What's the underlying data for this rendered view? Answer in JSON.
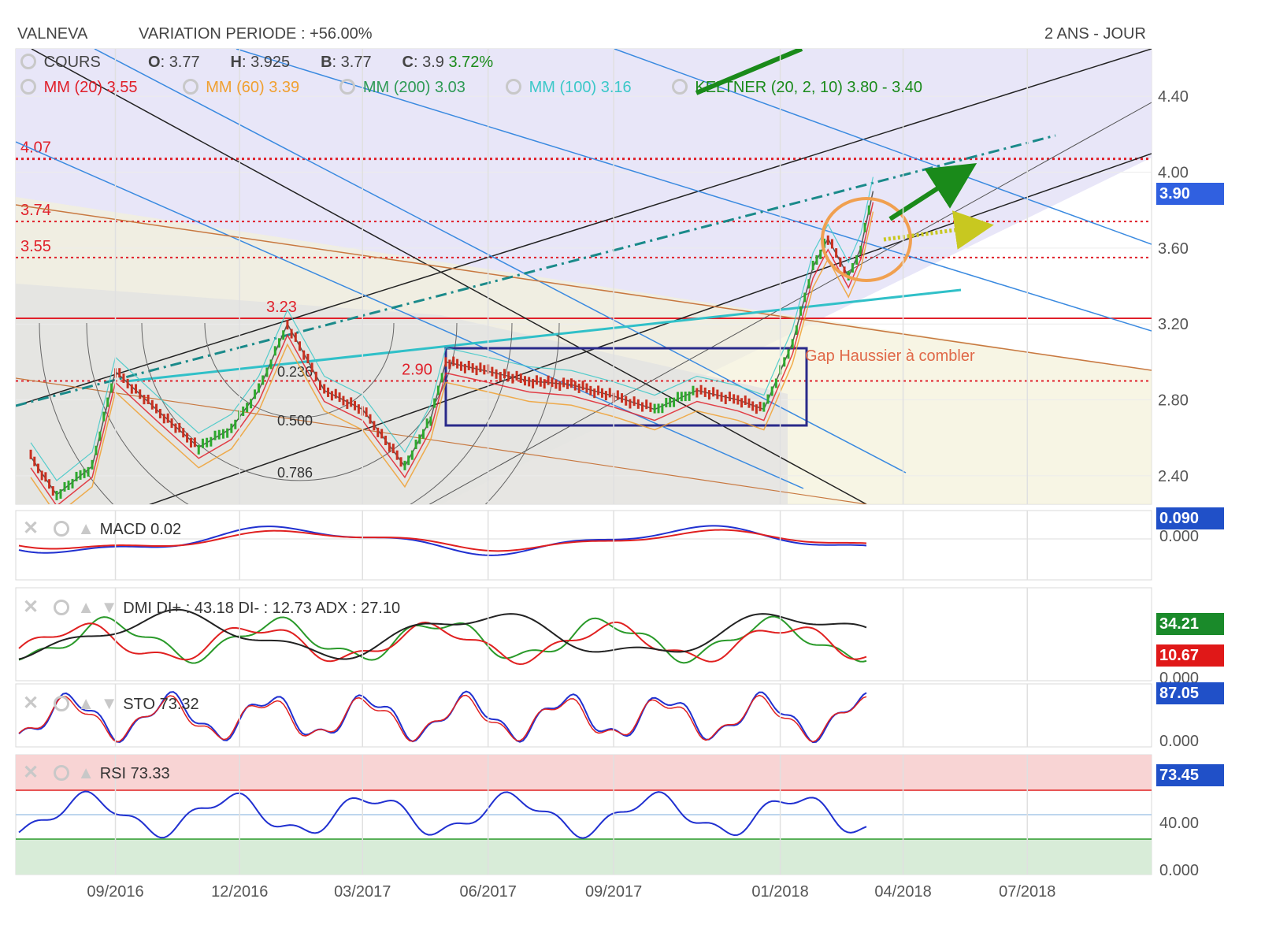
{
  "header": {
    "ticker": "VALNEVA",
    "variation": "VARIATION PERIODE : +56.00%",
    "period": "2 ANS - JOUR"
  },
  "legend_main": {
    "cours_label": "COURS",
    "open_label": "O",
    "open": "3.77",
    "high_label": "H",
    "high": "3.925",
    "low_label": "B",
    "low": "3.77",
    "close_label": "C",
    "close": "3.9",
    "change": "3.72%",
    "mm20_label": "MM (20)",
    "mm20": "3.55",
    "mm60_label": "MM (60)",
    "mm60": "3.39",
    "mm200_label": "MM (200)",
    "mm200": "3.03",
    "mm100_label": "MM (100)",
    "mm100": "3.16",
    "keltner_label": "KELTNER (20, 2, 10)",
    "keltner": "3.80 - 3.40"
  },
  "annotations": {
    "level_407": "4.07",
    "level_374": "3.74",
    "level_355": "3.55",
    "level_323": "3.23",
    "level_290": "2.90",
    "fib_0236": "0.236",
    "fib_0500": "0.500",
    "fib_0786": "0.786",
    "gap_text": "Gap Haussier à combler"
  },
  "panels": {
    "macd": {
      "label": "MACD",
      "value": "0.02",
      "badge_top": "0.090",
      "badge_zero": "0.000"
    },
    "dmi": {
      "label": "DMI",
      "text": "DI+ : 43.18 DI- : 12.73 ADX : 27.10",
      "badge_plus": "34.21",
      "badge_minus": "10.67",
      "badge_zero": "0.000"
    },
    "sto": {
      "label": "STO",
      "value": "73.32",
      "badge": "87.05",
      "zero": "0.000"
    },
    "rsi": {
      "label": "RSI",
      "value": "73.33",
      "badge": "73.45",
      "mid": "40.00",
      "zero": "0.000"
    }
  },
  "last_price_badge": "3.90",
  "colors": {
    "mm20": "#e0202a",
    "mm60": "#f0a030",
    "mm200": "#2e9a55",
    "mm100": "#3cc8c8",
    "keltner": "#1a8a1a",
    "badge_blue": "#3060e0",
    "badge_green": "#1a8a2a",
    "badge_red": "#e01818"
  },
  "chart_data": {
    "type": "candlestick",
    "title": "VALNEVA",
    "period": "2 ANS - JOUR",
    "x_ticks": [
      "09/2016",
      "12/2016",
      "03/2017",
      "06/2017",
      "09/2017",
      "01/2018",
      "04/2018",
      "07/2018"
    ],
    "y_ticks": [
      "2.40",
      "2.80",
      "3.20",
      "3.60",
      "4.00",
      "4.40"
    ],
    "ylim": [
      2.25,
      4.65
    ],
    "last_close": 3.9,
    "price_path": [
      {
        "x": "2016-07-01",
        "y": 2.5
      },
      {
        "x": "2016-07-20",
        "y": 2.3
      },
      {
        "x": "2016-08-15",
        "y": 2.45
      },
      {
        "x": "2016-09-01",
        "y": 2.95
      },
      {
        "x": "2016-10-01",
        "y": 2.75
      },
      {
        "x": "2016-11-01",
        "y": 2.55
      },
      {
        "x": "2016-11-25",
        "y": 2.65
      },
      {
        "x": "2016-12-15",
        "y": 2.85
      },
      {
        "x": "2017-01-05",
        "y": 3.2
      },
      {
        "x": "2017-02-01",
        "y": 2.85
      },
      {
        "x": "2017-03-01",
        "y": 2.75
      },
      {
        "x": "2017-04-01",
        "y": 2.45
      },
      {
        "x": "2017-04-20",
        "y": 2.7
      },
      {
        "x": "2017-05-01",
        "y": 3.0
      },
      {
        "x": "2017-06-01",
        "y": 2.95
      },
      {
        "x": "2017-07-01",
        "y": 2.9
      },
      {
        "x": "2017-08-01",
        "y": 2.88
      },
      {
        "x": "2017-09-01",
        "y": 2.82
      },
      {
        "x": "2017-10-01",
        "y": 2.75
      },
      {
        "x": "2017-11-01",
        "y": 2.85
      },
      {
        "x": "2017-12-01",
        "y": 2.8
      },
      {
        "x": "2017-12-20",
        "y": 2.75
      },
      {
        "x": "2018-01-10",
        "y": 3.1
      },
      {
        "x": "2018-01-25",
        "y": 3.5
      },
      {
        "x": "2018-02-05",
        "y": 3.65
      },
      {
        "x": "2018-02-20",
        "y": 3.45
      },
      {
        "x": "2018-03-01",
        "y": 3.6
      },
      {
        "x": "2018-03-10",
        "y": 3.9
      }
    ],
    "horizontal_levels": [
      4.07,
      3.74,
      3.55,
      3.23,
      2.9
    ],
    "indicators": {
      "MM20": 3.55,
      "MM60": 3.39,
      "MM200": 3.03,
      "MM100": 3.16,
      "KELTNER": [
        3.8,
        3.4
      ]
    },
    "macd": 0.02,
    "dmi": {
      "di_plus": 43.18,
      "di_minus": 12.73,
      "adx": 27.1
    },
    "sto": 73.32,
    "rsi": 73.33
  }
}
